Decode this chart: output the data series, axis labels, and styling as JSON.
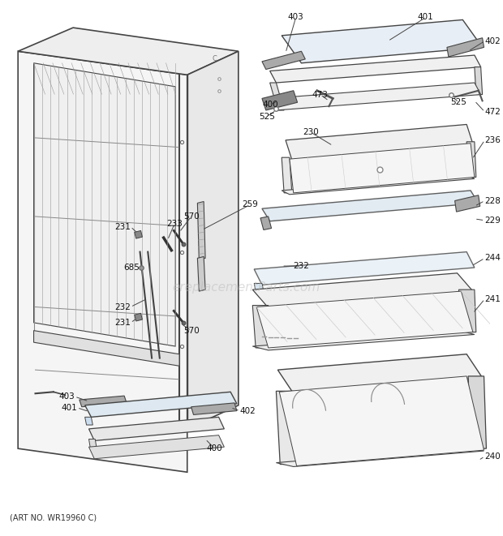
{
  "bg_color": "#ffffff",
  "line_color": "#444444",
  "label_color": "#111111",
  "watermark": "ereplacementParts.com",
  "watermark_color": "#bbbbbb",
  "art_no": "(ART NO. WR19960 C)",
  "fig_width": 6.2,
  "fig_height": 6.61,
  "dpi": 100
}
